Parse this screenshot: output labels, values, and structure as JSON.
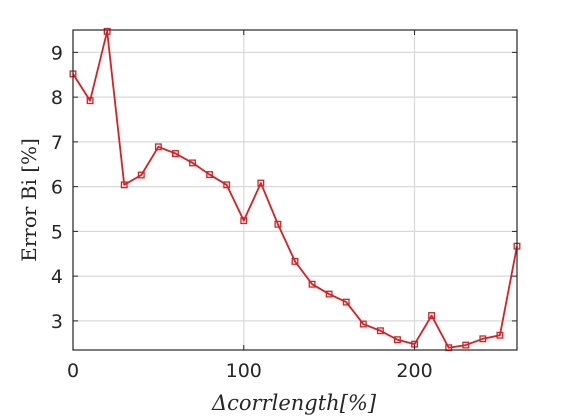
{
  "chart_data": {
    "type": "line",
    "title": "",
    "xlabel": "Δcorrlength[%]",
    "ylabel": "Error Bi [%]",
    "xlim": [
      0,
      260
    ],
    "ylim": [
      2.35,
      9.5
    ],
    "xticks": [
      0,
      100,
      200
    ],
    "yticks": [
      3,
      4,
      5,
      6,
      7,
      8,
      9
    ],
    "grid": true,
    "legend": "none",
    "series": [
      {
        "color": "#e41a1c",
        "marker": "square",
        "x": [
          0,
          10,
          20,
          30,
          40,
          50,
          60,
          70,
          80,
          90,
          100,
          110,
          120,
          130,
          140,
          150,
          160,
          170,
          180,
          190,
          200,
          210,
          220,
          230,
          240,
          250,
          260
        ],
        "y": [
          8.52,
          7.92,
          9.47,
          6.04,
          6.26,
          6.89,
          6.74,
          6.53,
          6.27,
          6.04,
          5.24,
          6.08,
          5.16,
          4.33,
          3.82,
          3.6,
          3.42,
          2.93,
          2.78,
          2.58,
          2.48,
          3.12,
          2.4,
          2.46,
          2.6,
          2.68,
          4.67
        ]
      }
    ]
  }
}
